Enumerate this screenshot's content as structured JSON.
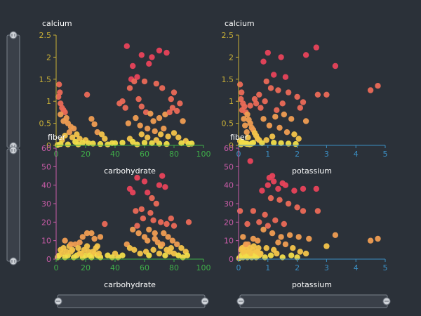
{
  "colors": {
    "background": "#2b3139",
    "x_axis_carbohydrate": "#3fae49",
    "x_axis_potassium": "#3b8fc4",
    "y_axis_calcium": "#c9b037",
    "y_axis_fiber": "#c95ca8",
    "point_palette": [
      "#e8435a",
      "#eb6a57",
      "#ef9d52",
      "#f3c44a",
      "#f1dd4a"
    ]
  },
  "chart_data": [
    {
      "type": "scatter",
      "panel": "top-left",
      "xlabel": "carbohydrate",
      "ylabel": "calcium",
      "xlim": [
        0,
        100
      ],
      "ylim": [
        0,
        2.5
      ],
      "x_ticks": [
        "0",
        "20",
        "40",
        "60",
        "80",
        "100"
      ],
      "y_ticks": [
        "0",
        "0.5",
        "1",
        "1.5",
        "2",
        "2.5"
      ],
      "points": [
        [
          2,
          1.38
        ],
        [
          2.5,
          1.2
        ],
        [
          1.5,
          1.1
        ],
        [
          3,
          0.95
        ],
        [
          4,
          0.85
        ],
        [
          5,
          0.8
        ],
        [
          6,
          0.75
        ],
        [
          3,
          0.7
        ],
        [
          7,
          0.62
        ],
        [
          5,
          0.55
        ],
        [
          8,
          0.5
        ],
        [
          10,
          0.42
        ],
        [
          12,
          0.38
        ],
        [
          9,
          0.3
        ],
        [
          14,
          0.25
        ],
        [
          6,
          0.22
        ],
        [
          11,
          0.18
        ],
        [
          16,
          0.15
        ],
        [
          20,
          0.12
        ],
        [
          4,
          0.12
        ],
        [
          13,
          0.08
        ],
        [
          18,
          0.06
        ],
        [
          22,
          0.05
        ],
        [
          25,
          0.04
        ],
        [
          3,
          0.03
        ],
        [
          8,
          0.02
        ],
        [
          15,
          0.02
        ],
        [
          30,
          0.03
        ],
        [
          35,
          0.02
        ],
        [
          1,
          0.01
        ],
        [
          21,
          1.15
        ],
        [
          24,
          0.6
        ],
        [
          26,
          0.48
        ],
        [
          28,
          0.3
        ],
        [
          31,
          0.25
        ],
        [
          33,
          0.15
        ],
        [
          48,
          2.25
        ],
        [
          58,
          2.05
        ],
        [
          65,
          2.0
        ],
        [
          70,
          2.15
        ],
        [
          75,
          2.1
        ],
        [
          63,
          1.85
        ],
        [
          52,
          1.8
        ],
        [
          55,
          1.55
        ],
        [
          50,
          1.3
        ],
        [
          51,
          1.5
        ],
        [
          53,
          1.45
        ],
        [
          60,
          1.45
        ],
        [
          68,
          1.4
        ],
        [
          72,
          1.3
        ],
        [
          80,
          1.2
        ],
        [
          78,
          1.05
        ],
        [
          84,
          0.95
        ],
        [
          56,
          1.05
        ],
        [
          45,
          1.0
        ],
        [
          43,
          0.95
        ],
        [
          47,
          0.85
        ],
        [
          58,
          0.88
        ],
        [
          61,
          0.75
        ],
        [
          64,
          0.72
        ],
        [
          66,
          0.55
        ],
        [
          70,
          0.62
        ],
        [
          74,
          0.7
        ],
        [
          77,
          0.75
        ],
        [
          79,
          0.85
        ],
        [
          82,
          0.78
        ],
        [
          86,
          0.55
        ],
        [
          54,
          0.62
        ],
        [
          49,
          0.5
        ],
        [
          57,
          0.45
        ],
        [
          62,
          0.38
        ],
        [
          67,
          0.32
        ],
        [
          71,
          0.25
        ],
        [
          73,
          0.38
        ],
        [
          76,
          0.2
        ],
        [
          80,
          0.28
        ],
        [
          83,
          0.18
        ],
        [
          88,
          0.1
        ],
        [
          50,
          0.15
        ],
        [
          52,
          0.08
        ],
        [
          60,
          0.06
        ],
        [
          65,
          0.05
        ],
        [
          70,
          0.04
        ],
        [
          75,
          0.03
        ],
        [
          85,
          0.05
        ],
        [
          90,
          0.03
        ],
        [
          92,
          0.04
        ],
        [
          55,
          0.02
        ],
        [
          45,
          0.06
        ],
        [
          40,
          0.05
        ],
        [
          38,
          0.05
        ],
        [
          68,
          0.12
        ],
        [
          62,
          0.18
        ],
        [
          58,
          0.25
        ]
      ]
    },
    {
      "type": "scatter",
      "panel": "top-right",
      "xlabel": "potassium",
      "ylabel": "calcium",
      "xlim": [
        0,
        5
      ],
      "ylim": [
        0,
        2.5
      ],
      "x_ticks": [
        "0",
        "1",
        "2",
        "3",
        "4",
        "5"
      ],
      "y_ticks": [
        "0",
        "0.5",
        "1",
        "1.5",
        "2",
        "2.5"
      ],
      "points": [
        [
          0.05,
          1.38
        ],
        [
          0.1,
          1.2
        ],
        [
          0.08,
          1.05
        ],
        [
          0.15,
          0.95
        ],
        [
          0.2,
          0.88
        ],
        [
          0.12,
          0.8
        ],
        [
          0.25,
          0.75
        ],
        [
          0.3,
          0.7
        ],
        [
          0.18,
          0.6
        ],
        [
          0.35,
          0.58
        ],
        [
          0.4,
          0.5
        ],
        [
          0.22,
          0.45
        ],
        [
          0.45,
          0.4
        ],
        [
          0.5,
          0.35
        ],
        [
          0.28,
          0.3
        ],
        [
          0.55,
          0.28
        ],
        [
          0.6,
          0.22
        ],
        [
          0.32,
          0.18
        ],
        [
          0.65,
          0.15
        ],
        [
          0.7,
          0.12
        ],
        [
          0.05,
          0.1
        ],
        [
          0.1,
          0.08
        ],
        [
          0.15,
          0.06
        ],
        [
          0.2,
          0.05
        ],
        [
          0.25,
          0.04
        ],
        [
          0.3,
          0.03
        ],
        [
          0.38,
          0.02
        ],
        [
          0.45,
          0.04
        ],
        [
          0.08,
          0.02
        ],
        [
          0.5,
          0.06
        ],
        [
          1.0,
          2.1
        ],
        [
          1.45,
          2.0
        ],
        [
          2.3,
          2.05
        ],
        [
          2.65,
          2.22
        ],
        [
          3.3,
          1.8
        ],
        [
          0.85,
          1.9
        ],
        [
          1.2,
          1.6
        ],
        [
          0.95,
          1.45
        ],
        [
          1.6,
          1.55
        ],
        [
          1.1,
          1.3
        ],
        [
          1.35,
          1.25
        ],
        [
          1.7,
          1.2
        ],
        [
          2.0,
          1.1
        ],
        [
          2.2,
          0.98
        ],
        [
          2.1,
          0.85
        ],
        [
          1.5,
          0.95
        ],
        [
          0.9,
          1.0
        ],
        [
          0.75,
          0.85
        ],
        [
          1.3,
          0.8
        ],
        [
          1.55,
          0.7
        ],
        [
          1.8,
          0.6
        ],
        [
          2.3,
          0.55
        ],
        [
          1.25,
          0.65
        ],
        [
          0.85,
          0.6
        ],
        [
          1.05,
          0.45
        ],
        [
          1.4,
          0.4
        ],
        [
          1.65,
          0.3
        ],
        [
          1.9,
          0.25
        ],
        [
          2.05,
          0.15
        ],
        [
          1.15,
          0.2
        ],
        [
          0.95,
          0.12
        ],
        [
          1.2,
          0.06
        ],
        [
          1.45,
          0.05
        ],
        [
          1.7,
          0.04
        ],
        [
          1.95,
          0.03
        ],
        [
          0.8,
          0.05
        ],
        [
          2.7,
          1.15
        ],
        [
          3.0,
          1.15
        ],
        [
          4.5,
          1.25
        ],
        [
          4.75,
          1.35
        ],
        [
          0.7,
          1.15
        ],
        [
          0.55,
          1.05
        ],
        [
          0.4,
          0.9
        ],
        [
          0.6,
          0.95
        ]
      ]
    },
    {
      "type": "scatter",
      "panel": "bottom-left",
      "xlabel": "carbohydrate",
      "ylabel": "fiber",
      "xlim": [
        0,
        100
      ],
      "ylim": [
        0,
        60
      ],
      "x_ticks": [
        "0",
        "20",
        "40",
        "60",
        "80",
        "100"
      ],
      "y_ticks": [
        "0",
        "10",
        "20",
        "30",
        "40",
        "50",
        "60"
      ],
      "points": [
        [
          2,
          2
        ],
        [
          4,
          3
        ],
        [
          6,
          1
        ],
        [
          8,
          2
        ],
        [
          10,
          4
        ],
        [
          12,
          1
        ],
        [
          14,
          2
        ],
        [
          16,
          3
        ],
        [
          18,
          1
        ],
        [
          20,
          2
        ],
        [
          22,
          4
        ],
        [
          24,
          1
        ],
        [
          26,
          3
        ],
        [
          28,
          2
        ],
        [
          30,
          1
        ],
        [
          3,
          5
        ],
        [
          5,
          6
        ],
        [
          7,
          4
        ],
        [
          9,
          7
        ],
        [
          11,
          5
        ],
        [
          13,
          8
        ],
        [
          15,
          6
        ],
        [
          17,
          3
        ],
        [
          19,
          5
        ],
        [
          21,
          7
        ],
        [
          23,
          2
        ],
        [
          25,
          4
        ],
        [
          27,
          6
        ],
        [
          29,
          3
        ],
        [
          1,
          1
        ],
        [
          6,
          10
        ],
        [
          10,
          8
        ],
        [
          16,
          9
        ],
        [
          21,
          14
        ],
        [
          24,
          14
        ],
        [
          26,
          11
        ],
        [
          30,
          12
        ],
        [
          33,
          19
        ],
        [
          28,
          7
        ],
        [
          18,
          12
        ],
        [
          50,
          38
        ],
        [
          52,
          36
        ],
        [
          55,
          44
        ],
        [
          60,
          42
        ],
        [
          62,
          36
        ],
        [
          65,
          33
        ],
        [
          70,
          40
        ],
        [
          72,
          45
        ],
        [
          74,
          39
        ],
        [
          68,
          30
        ],
        [
          58,
          27
        ],
        [
          54,
          26
        ],
        [
          64,
          25
        ],
        [
          66,
          21
        ],
        [
          71,
          20
        ],
        [
          75,
          19
        ],
        [
          78,
          22
        ],
        [
          80,
          18
        ],
        [
          52,
          16
        ],
        [
          56,
          14
        ],
        [
          60,
          12
        ],
        [
          62,
          10
        ],
        [
          67,
          11
        ],
        [
          69,
          9
        ],
        [
          73,
          14
        ],
        [
          76,
          12
        ],
        [
          79,
          10
        ],
        [
          82,
          8
        ],
        [
          85,
          6
        ],
        [
          88,
          4
        ],
        [
          48,
          8
        ],
        [
          50,
          6
        ],
        [
          53,
          5
        ],
        [
          57,
          3
        ],
        [
          61,
          4
        ],
        [
          63,
          2
        ],
        [
          66,
          5
        ],
        [
          70,
          3
        ],
        [
          74,
          2
        ],
        [
          77,
          4
        ],
        [
          80,
          3
        ],
        [
          83,
          2
        ],
        [
          86,
          1
        ],
        [
          89,
          2
        ],
        [
          45,
          2
        ],
        [
          42,
          1
        ],
        [
          40,
          3
        ],
        [
          38,
          1
        ],
        [
          35,
          2
        ],
        [
          90,
          20
        ],
        [
          55,
          18
        ],
        [
          59,
          22
        ],
        [
          63,
          16
        ],
        [
          67,
          14
        ],
        [
          71,
          7
        ],
        [
          75,
          5
        ],
        [
          72,
          8
        ],
        [
          78,
          6
        ]
      ]
    },
    {
      "type": "scatter",
      "panel": "bottom-right",
      "xlabel": "potassium",
      "ylabel": "fiber",
      "xlim": [
        0,
        5
      ],
      "ylim": [
        0,
        60
      ],
      "x_ticks": [
        "0",
        "1",
        "2",
        "3",
        "4",
        "5"
      ],
      "y_ticks": [
        "0",
        "10",
        "20",
        "30",
        "40",
        "50",
        "60"
      ],
      "points": [
        [
          0.05,
          1
        ],
        [
          0.1,
          2
        ],
        [
          0.15,
          1
        ],
        [
          0.2,
          3
        ],
        [
          0.25,
          2
        ],
        [
          0.3,
          1
        ],
        [
          0.35,
          4
        ],
        [
          0.4,
          2
        ],
        [
          0.45,
          1
        ],
        [
          0.5,
          3
        ],
        [
          0.55,
          2
        ],
        [
          0.6,
          1
        ],
        [
          0.65,
          4
        ],
        [
          0.7,
          2
        ],
        [
          0.75,
          3
        ],
        [
          0.08,
          5
        ],
        [
          0.12,
          6
        ],
        [
          0.18,
          4
        ],
        [
          0.22,
          7
        ],
        [
          0.28,
          5
        ],
        [
          0.32,
          8
        ],
        [
          0.38,
          6
        ],
        [
          0.42,
          3
        ],
        [
          0.48,
          5
        ],
        [
          0.52,
          7
        ],
        [
          0.58,
          2
        ],
        [
          0.62,
          4
        ],
        [
          0.68,
          6
        ],
        [
          0.72,
          3
        ],
        [
          0.02,
          0.5
        ],
        [
          0.4,
          53
        ],
        [
          1.0,
          40
        ],
        [
          1.05,
          44
        ],
        [
          1.15,
          45
        ],
        [
          1.2,
          42
        ],
        [
          1.35,
          38
        ],
        [
          1.5,
          41
        ],
        [
          1.6,
          40
        ],
        [
          0.8,
          37
        ],
        [
          1.9,
          37
        ],
        [
          2.2,
          38
        ],
        [
          2.65,
          38
        ],
        [
          1.1,
          33
        ],
        [
          1.4,
          32
        ],
        [
          1.7,
          30
        ],
        [
          2.0,
          28
        ],
        [
          2.2,
          26
        ],
        [
          2.7,
          26
        ],
        [
          0.5,
          26
        ],
        [
          0.05,
          26
        ],
        [
          0.9,
          24
        ],
        [
          1.25,
          21
        ],
        [
          1.55,
          19
        ],
        [
          1.0,
          18
        ],
        [
          0.7,
          20
        ],
        [
          0.3,
          19
        ],
        [
          0.85,
          16
        ],
        [
          1.15,
          14
        ],
        [
          1.45,
          12
        ],
        [
          1.75,
          13
        ],
        [
          2.05,
          12
        ],
        [
          2.4,
          11
        ],
        [
          1.35,
          9
        ],
        [
          1.6,
          8
        ],
        [
          1.85,
          6
        ],
        [
          2.1,
          4
        ],
        [
          2.3,
          3
        ],
        [
          0.95,
          6
        ],
        [
          1.2,
          5
        ],
        [
          1.3,
          3
        ],
        [
          0.5,
          11
        ],
        [
          0.65,
          10
        ],
        [
          0.25,
          8
        ],
        [
          0.15,
          12
        ],
        [
          3.0,
          7
        ],
        [
          3.3,
          13
        ],
        [
          4.5,
          10
        ],
        [
          4.75,
          11
        ],
        [
          0.9,
          1
        ],
        [
          1.1,
          2
        ],
        [
          1.5,
          1
        ],
        [
          1.8,
          2
        ],
        [
          2.0,
          1
        ]
      ]
    }
  ]
}
